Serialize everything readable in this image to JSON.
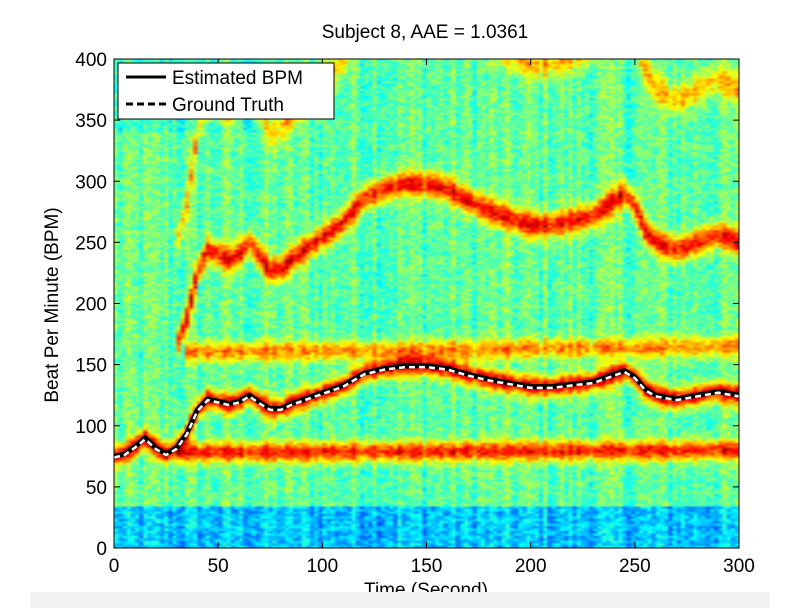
{
  "chart_data": {
    "type": "heatmap",
    "title": "Subject 8, AAE = 1.0361",
    "xlabel": "Time (Second)",
    "ylabel": "Beat Per Minute (BPM)",
    "xlim": [
      0,
      300
    ],
    "ylim": [
      0,
      400
    ],
    "xticks": [
      0,
      50,
      100,
      150,
      200,
      250,
      300
    ],
    "yticks": [
      0,
      50,
      100,
      150,
      200,
      250,
      300,
      350,
      400
    ],
    "grid": false,
    "legend_position": "top-left",
    "colormap": "jet",
    "legend": [
      {
        "label": "Estimated BPM",
        "style": "solid",
        "color": "#000000"
      },
      {
        "label": "Ground Truth",
        "style": "dashed",
        "color": "#ffffff"
      }
    ],
    "series": [
      {
        "name": "Estimated BPM",
        "x": [
          0,
          5,
          10,
          15,
          20,
          25,
          30,
          35,
          40,
          45,
          50,
          55,
          60,
          65,
          70,
          75,
          80,
          85,
          90,
          95,
          100,
          110,
          120,
          130,
          140,
          150,
          160,
          170,
          180,
          190,
          200,
          210,
          220,
          230,
          240,
          245,
          250,
          255,
          260,
          270,
          280,
          290,
          300
        ],
        "y": [
          75,
          77,
          83,
          90,
          82,
          77,
          82,
          94,
          113,
          122,
          120,
          118,
          120,
          125,
          119,
          114,
          114,
          118,
          121,
          124,
          127,
          133,
          143,
          147,
          149,
          149,
          147,
          142,
          138,
          135,
          132,
          132,
          134,
          136,
          142,
          145,
          140,
          130,
          125,
          122,
          125,
          128,
          125
        ]
      },
      {
        "name": "Ground Truth",
        "x": [
          0,
          5,
          10,
          15,
          20,
          25,
          30,
          35,
          40,
          45,
          50,
          55,
          60,
          65,
          70,
          75,
          80,
          85,
          90,
          95,
          100,
          110,
          120,
          130,
          140,
          150,
          160,
          170,
          180,
          190,
          200,
          210,
          220,
          230,
          240,
          245,
          250,
          255,
          260,
          270,
          280,
          290,
          300
        ],
        "y": [
          74,
          76,
          82,
          89,
          81,
          76,
          81,
          93,
          112,
          121,
          119,
          117,
          119,
          124,
          118,
          113,
          113,
          117,
          120,
          123,
          126,
          132,
          142,
          146,
          148,
          148,
          146,
          141,
          137,
          134,
          131,
          131,
          133,
          135,
          141,
          144,
          139,
          129,
          124,
          121,
          124,
          127,
          124
        ]
      }
    ],
    "heatmap_ridges": [
      {
        "name": "fundamental",
        "ref": "Estimated BPM",
        "multiplier": 1.0,
        "strength": 1.0
      },
      {
        "name": "second-harmonic",
        "ref": "Estimated BPM",
        "multiplier": 2.0,
        "strength": 0.9
      },
      {
        "name": "third-harmonic",
        "ref": "Estimated BPM",
        "multiplier": 3.0,
        "strength": 0.5
      },
      {
        "name": "low-band",
        "x": [
          30,
          300
        ],
        "y": [
          78,
          80
        ],
        "strength": 0.85
      },
      {
        "name": "mid-band",
        "x": [
          35,
          300
        ],
        "y": [
          160,
          165
        ],
        "strength": 0.6
      }
    ]
  }
}
